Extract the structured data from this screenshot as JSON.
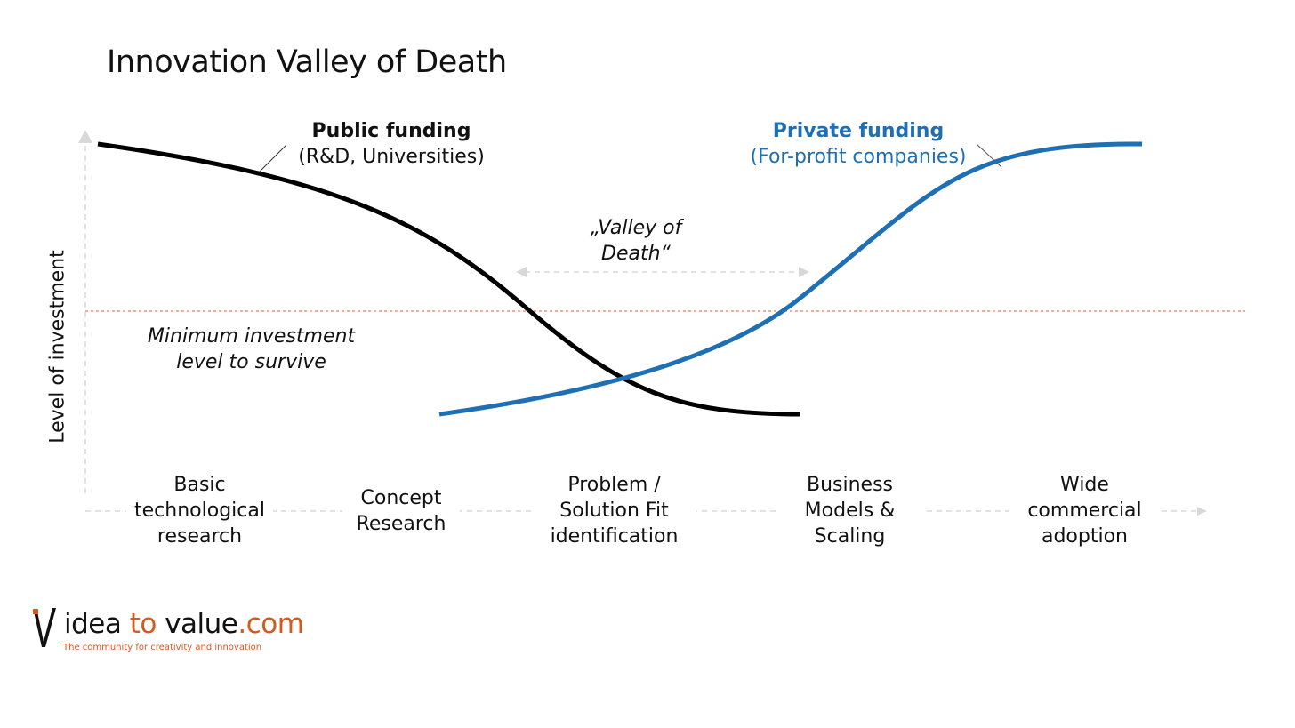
{
  "title": "Innovation Valley of Death",
  "y_axis_label": "Level of  investment",
  "public_funding": {
    "title": "Public funding",
    "subtitle": "(R&D, Universities)",
    "color": "#000000"
  },
  "private_funding": {
    "title": "Private funding",
    "subtitle": "(For-profit companies)",
    "color": "#1f6fb5"
  },
  "valley_label": [
    "„Valley of",
    "Death“"
  ],
  "minimum_label": [
    "Minimum investment",
    "level to survive"
  ],
  "threshold_color": "#d9826e",
  "stages": [
    [
      "Basic",
      "technological",
      "research"
    ],
    [
      "Concept",
      "Research"
    ],
    [
      "Problem /",
      "Solution Fit",
      "identification"
    ],
    [
      "Business",
      "Models &",
      "Scaling"
    ],
    [
      "Wide",
      "commercial",
      "adoption"
    ]
  ],
  "logo": {
    "mark": "idea-to-value-mark",
    "text_dark_1": "idea ",
    "text_orange_1": "to",
    "text_dark_2": " value",
    "text_orange_2": ".com",
    "tagline": "The community for creativity and innovation",
    "accent_color": "#d65a1e"
  }
}
